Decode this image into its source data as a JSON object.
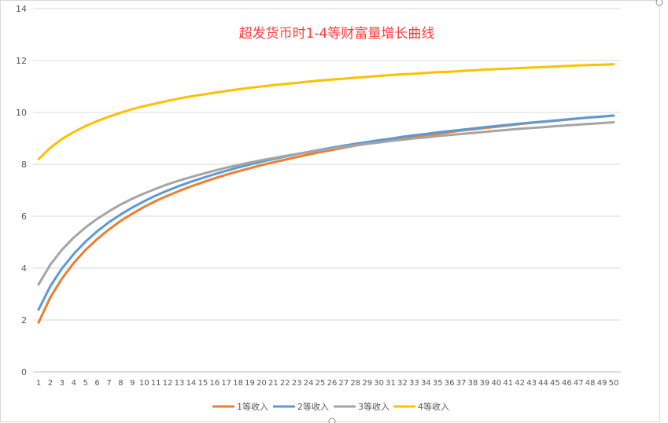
{
  "chart_data": {
    "type": "line",
    "title": "超发货币时1-4等财富量增长曲线",
    "xlabel": "",
    "ylabel": "",
    "ylim": [
      0,
      14
    ],
    "y_ticks": [
      "0",
      "2",
      "4",
      "6",
      "8",
      "10",
      "12",
      "14"
    ],
    "x": [
      "1",
      "2",
      "3",
      "4",
      "5",
      "6",
      "7",
      "8",
      "9",
      "10",
      "11",
      "12",
      "13",
      "14",
      "15",
      "16",
      "17",
      "18",
      "19",
      "20",
      "21",
      "22",
      "23",
      "24",
      "25",
      "26",
      "27",
      "28",
      "29",
      "30",
      "31",
      "32",
      "33",
      "34",
      "35",
      "36",
      "37",
      "38",
      "39",
      "40",
      "41",
      "42",
      "43",
      "44",
      "45",
      "46",
      "47",
      "48",
      "49",
      "50"
    ],
    "grid": true,
    "legend_position": "bottom",
    "series": [
      {
        "name": "1等收入",
        "color": "#ED7D31",
        "values": [
          1.9,
          2.87,
          3.6,
          4.2,
          4.7,
          5.12,
          5.49,
          5.82,
          6.1,
          6.36,
          6.59,
          6.79,
          6.98,
          7.15,
          7.31,
          7.46,
          7.6,
          7.73,
          7.85,
          7.97,
          8.08,
          8.18,
          8.28,
          8.38,
          8.47,
          8.55,
          8.64,
          8.72,
          8.79,
          8.86,
          8.93,
          9.0,
          9.06,
          9.13,
          9.18,
          9.24,
          9.3,
          9.35,
          9.4,
          9.45,
          9.5,
          9.55,
          9.6,
          9.64,
          9.68,
          9.72,
          9.77,
          9.81,
          9.84,
          9.88
        ]
      },
      {
        "name": "2等收入",
        "color": "#5B9BD5",
        "values": [
          2.4,
          3.3,
          3.99,
          4.55,
          5.02,
          5.42,
          5.77,
          6.07,
          6.34,
          6.58,
          6.8,
          6.99,
          7.17,
          7.33,
          7.48,
          7.62,
          7.75,
          7.88,
          7.99,
          8.1,
          8.2,
          8.3,
          8.39,
          8.48,
          8.56,
          8.64,
          8.72,
          8.79,
          8.86,
          8.93,
          8.99,
          9.06,
          9.12,
          9.17,
          9.23,
          9.28,
          9.33,
          9.38,
          9.43,
          9.48,
          9.52,
          9.57,
          9.61,
          9.65,
          9.69,
          9.73,
          9.77,
          9.81,
          9.84,
          9.88
        ]
      },
      {
        "name": "3等收入",
        "color": "#A5A5A5",
        "values": [
          3.37,
          4.13,
          4.71,
          5.18,
          5.57,
          5.9,
          6.19,
          6.45,
          6.68,
          6.88,
          7.06,
          7.23,
          7.38,
          7.51,
          7.64,
          7.76,
          7.87,
          7.97,
          8.07,
          8.16,
          8.24,
          8.32,
          8.4,
          8.47,
          8.54,
          8.61,
          8.67,
          8.73,
          8.79,
          8.84,
          8.9,
          8.95,
          9.0,
          9.04,
          9.09,
          9.13,
          9.17,
          9.21,
          9.25,
          9.29,
          9.33,
          9.37,
          9.4,
          9.43,
          9.47,
          9.5,
          9.53,
          9.56,
          9.59,
          9.62
        ]
      },
      {
        "name": "4等收入",
        "color": "#FFC000",
        "values": [
          8.2,
          8.64,
          8.98,
          9.25,
          9.48,
          9.67,
          9.84,
          9.99,
          10.13,
          10.25,
          10.35,
          10.45,
          10.54,
          10.62,
          10.69,
          10.76,
          10.83,
          10.89,
          10.95,
          11.0,
          11.05,
          11.1,
          11.14,
          11.19,
          11.23,
          11.27,
          11.3,
          11.34,
          11.37,
          11.41,
          11.44,
          11.47,
          11.49,
          11.52,
          11.55,
          11.57,
          11.6,
          11.62,
          11.65,
          11.67,
          11.69,
          11.71,
          11.73,
          11.75,
          11.77,
          11.79,
          11.81,
          11.83,
          11.84,
          11.86
        ]
      }
    ]
  }
}
